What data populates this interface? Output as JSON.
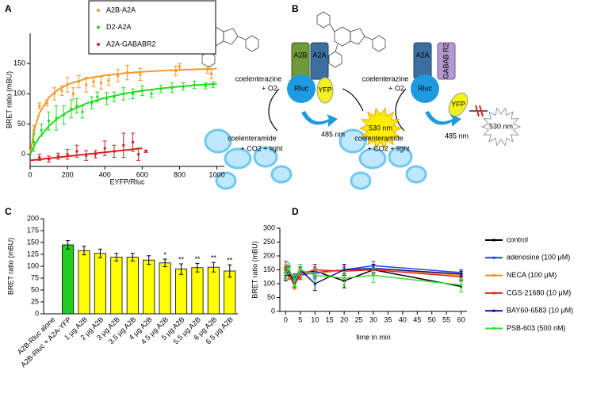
{
  "panel_labels": [
    "A",
    "B",
    "C",
    "D"
  ],
  "diagram": {
    "left": {
      "substrate": "coelenterazine",
      "oxygen": "+ O2",
      "product": "coelenteramide",
      "byproducts": "+ CO2 + light",
      "donor": "Rluc",
      "acceptor": "YFP",
      "receptor_1": "A2B",
      "receptor_2": "A2A",
      "emission_donor": "485 nm",
      "emission_acceptor": "530 nm"
    },
    "right": {
      "substrate": "coelenterazine",
      "oxygen": "+ O2",
      "product": "coelenteramide",
      "byproducts": "+ CO2 + light",
      "donor": "Rluc",
      "acceptor": "YFP",
      "receptor_1": "A2A",
      "receptor_2": "GABAB R2",
      "emission_donor": "485 nm",
      "emission_acceptor": "530 nm"
    }
  },
  "chart_data": [
    {
      "type": "scatter",
      "xlabel": "EYFP/Rluc",
      "ylabel": "BRET ratio (mBU)",
      "xlim": [
        0,
        1040
      ],
      "xticks": [
        0,
        200,
        400,
        600,
        800,
        1000
      ],
      "ylim": [
        -20,
        200
      ],
      "yticks": [
        0,
        50,
        100,
        150
      ],
      "series": [
        {
          "name": "A2B-A2A",
          "color": "#f39a2b",
          "x": [
            20,
            50,
            90,
            130,
            170,
            200,
            230,
            260,
            300,
            340,
            380,
            420,
            470,
            520,
            590,
            780,
            800,
            950,
            970
          ],
          "values": [
            40,
            80,
            85,
            100,
            105,
            115,
            100,
            120,
            115,
            120,
            118,
            122,
            130,
            135,
            132,
            138,
            145,
            140,
            133
          ],
          "errors": [
            8,
            5,
            5,
            10,
            8,
            12,
            10,
            10,
            12,
            8,
            10,
            8,
            10,
            12,
            10,
            8,
            5,
            6,
            8
          ],
          "fit": {
            "x": [
              0,
              25,
              50,
              100,
              150,
              200,
              300,
              400,
              500,
              600,
              700,
              800,
              900,
              1000
            ],
            "values": [
              0,
              44.1,
              68.2,
              93.8,
              107.1,
              115.4,
              125,
              130.4,
              133.9,
              136.4,
              138.2,
              139.5,
              140.6,
              141.5
            ]
          }
        },
        {
          "name": "D2-A2A",
          "color": "#22dd22",
          "x": [
            20,
            60,
            100,
            140,
            180,
            220,
            250,
            280,
            330,
            360,
            410,
            450,
            500,
            550,
            600,
            650,
            700,
            760,
            820,
            880,
            940,
            980
          ],
          "values": [
            20,
            40,
            55,
            60,
            65,
            75,
            80,
            70,
            85,
            95,
            92,
            95,
            100,
            100,
            105,
            100,
            108,
            110,
            112,
            115,
            113,
            115
          ],
          "errors": [
            15,
            10,
            15,
            20,
            15,
            15,
            12,
            10,
            10,
            8,
            10,
            8,
            10,
            8,
            8,
            6,
            6,
            8,
            6,
            6,
            5,
            5
          ],
          "fit": {
            "x": [
              0,
              25,
              50,
              100,
              150,
              200,
              300,
              400,
              500,
              600,
              700,
              800,
              900,
              1000
            ],
            "values": [
              0,
              15.6,
              28,
              46.7,
              60,
              70,
              84,
              93.3,
              100,
              105,
              108.9,
              112,
              114.5,
              116.7
            ]
          }
        },
        {
          "name": "A2A-GABABR2",
          "color": "#d42020",
          "x": [
            50,
            100,
            150,
            200,
            250,
            300,
            350,
            400,
            450,
            500,
            550,
            580,
            620
          ],
          "values": [
            -5,
            -8,
            -3,
            0,
            5,
            -2,
            0,
            10,
            5,
            15,
            20,
            0,
            5
          ],
          "errors": [
            5,
            5,
            5,
            8,
            10,
            8,
            6,
            12,
            10,
            20,
            15,
            10,
            2
          ],
          "fit": {
            "x": [
              0,
              600
            ],
            "values": [
              -10,
              10
            ]
          }
        }
      ]
    },
    {
      "type": "bar",
      "ylabel": "BRET ratio (mBU)",
      "categories": [
        "A2B-Rluc alone",
        "A2B-Rluc + A2A-YFP",
        "1 μg A2B",
        "2 μg A2B",
        "3 μg A2B",
        "3.5 μg A2B",
        "4 μg A2B",
        "4.5 μg A2B",
        "5 μg A2B",
        "5.5 μg A2B",
        "6 μg A2B",
        "6.5 μg A2B"
      ],
      "values": [
        0,
        145,
        133,
        127,
        119,
        119,
        113,
        107,
        94,
        97,
        98,
        90
      ],
      "errors": [
        0,
        9,
        9,
        9,
        8,
        8,
        9,
        8,
        11,
        9,
        10,
        13
      ],
      "colors": [
        "#ffff00",
        "#22cc22",
        "#ffff00",
        "#ffff00",
        "#ffff00",
        "#ffff00",
        "#ffff00",
        "#ffff00",
        "#ffff00",
        "#ffff00",
        "#ffff00",
        "#ffff00"
      ],
      "annotations": [
        null,
        null,
        null,
        null,
        null,
        null,
        null,
        "*",
        "**",
        "**",
        "**",
        "**"
      ],
      "ylim": [
        0,
        200
      ],
      "yticks": [
        0,
        25,
        50,
        75,
        100,
        125,
        150,
        175,
        200
      ]
    },
    {
      "type": "line",
      "xlabel": "time in min",
      "ylabel": "BRET ratio (mBU)",
      "xlim": [
        -2,
        62
      ],
      "xticks": [
        0,
        5,
        10,
        15,
        20,
        25,
        30,
        35,
        40,
        45,
        50,
        55,
        60
      ],
      "ylim": [
        0,
        300
      ],
      "yticks": [
        0,
        50,
        100,
        150,
        200,
        250,
        300
      ],
      "x": [
        0,
        1,
        3,
        5,
        10,
        20,
        30,
        60
      ],
      "series": [
        {
          "name": "control",
          "color": "#000000",
          "values": [
            140,
            150,
            100,
            140,
            145,
            110,
            150,
            90
          ],
          "errors": [
            20,
            15,
            15,
            20,
            25,
            25,
            20,
            20
          ]
        },
        {
          "name": "adenosine (100 μM)",
          "color": "#1f3fff",
          "values": [
            160,
            140,
            95,
            130,
            140,
            150,
            165,
            140
          ],
          "errors": [
            20,
            20,
            15,
            15,
            20,
            20,
            15,
            10
          ]
        },
        {
          "name": "NECA (100 μM)",
          "color": "#f08c1e",
          "values": [
            150,
            135,
            90,
            140,
            135,
            150,
            155,
            130
          ],
          "errors": [
            20,
            15,
            10,
            15,
            20,
            20,
            15,
            10
          ]
        },
        {
          "name": "CGS-21680 (10 μM)",
          "color": "#e02020",
          "values": [
            145,
            130,
            100,
            135,
            150,
            145,
            150,
            125
          ],
          "errors": [
            15,
            15,
            15,
            15,
            20,
            15,
            15,
            10
          ]
        },
        {
          "name": "BAY60-6583 (10 μM)",
          "color": "#101080",
          "values": [
            130,
            145,
            120,
            150,
            100,
            150,
            155,
            135
          ],
          "errors": [
            20,
            15,
            15,
            20,
            25,
            20,
            15,
            10
          ]
        },
        {
          "name": "PSB-603 (500 nM)",
          "color": "#33dd33",
          "values": [
            135,
            155,
            110,
            150,
            130,
            120,
            130,
            95
          ],
          "errors": [
            20,
            20,
            20,
            20,
            25,
            25,
            25,
            25
          ]
        }
      ]
    }
  ]
}
